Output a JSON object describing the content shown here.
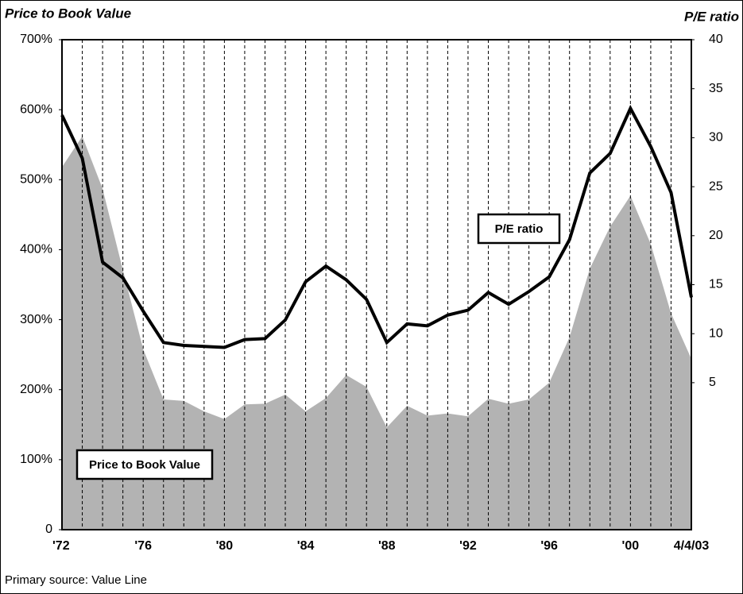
{
  "chart_data": {
    "type": "line",
    "y_label": "Price to Book Value",
    "y2_label": "P/E ratio",
    "source": "Primary source: Value Line",
    "categories": [
      "'72",
      null,
      null,
      null,
      "'76",
      null,
      null,
      null,
      "'80",
      null,
      null,
      null,
      "'84",
      null,
      null,
      null,
      "'88",
      null,
      null,
      null,
      "'92",
      null,
      null,
      null,
      "'96",
      null,
      null,
      null,
      "'00",
      null,
      null,
      "4/4/03"
    ],
    "series": [
      {
        "name": "Price to Book Value",
        "color": "#b3b3b3",
        "kind": "area",
        "values": [
          518,
          562,
          487,
          371,
          258,
          186,
          184,
          169,
          158,
          179,
          180,
          193,
          169,
          188,
          221,
          204,
          146,
          177,
          163,
          166,
          162,
          187,
          180,
          186,
          210,
          275,
          373,
          433,
          477,
          408,
          309,
          244
        ]
      },
      {
        "name": "P/E ratio",
        "color": "#000000",
        "kind": "line",
        "axis": "y2",
        "values": [
          32.3,
          27.9,
          17.3,
          15.7,
          12.3,
          9.1,
          8.8,
          8.7,
          8.6,
          9.4,
          9.5,
          11.4,
          15.3,
          16.9,
          15.5,
          13.5,
          9.1,
          11.0,
          10.8,
          11.9,
          12.4,
          14.2,
          13.0,
          14.3,
          15.8,
          19.6,
          26.4,
          28.4,
          33.0,
          29.1,
          24.4,
          13.7
        ]
      }
    ],
    "ylim": [
      0,
      700
    ],
    "yticks": [
      0,
      {
        "value": 100,
        "label": "100%"
      },
      {
        "value": 200,
        "label": "200%"
      },
      {
        "value": 300,
        "label": "300%"
      },
      {
        "value": 400,
        "label": "400%"
      },
      {
        "value": 500,
        "label": "500%"
      },
      {
        "value": 600,
        "label": "600%"
      },
      {
        "value": 700,
        "label": "700%"
      }
    ],
    "y2lim": [
      -10,
      40
    ],
    "y2ticks": [
      5,
      10,
      15,
      20,
      25,
      30,
      35,
      40
    ],
    "xgrid": true
  }
}
